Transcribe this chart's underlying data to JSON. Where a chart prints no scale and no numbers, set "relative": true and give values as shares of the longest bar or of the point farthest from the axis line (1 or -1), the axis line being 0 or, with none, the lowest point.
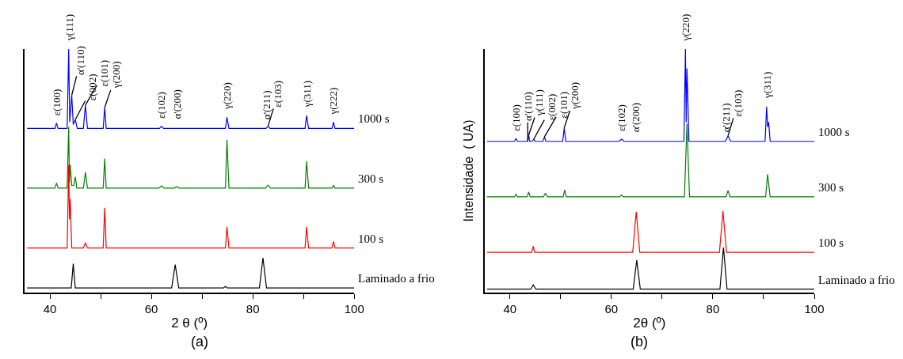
{
  "chart_data": [
    {
      "type": "line",
      "relative": true,
      "legend": false,
      "tick_labels": "x",
      "xlim": [
        35,
        100
      ],
      "xticks": [
        40,
        {
          "value": 50,
          "label": null
        },
        60,
        {
          "value": 70,
          "label": null
        },
        80,
        {
          "value": 90,
          "label": null
        },
        100
      ],
      "xlabel": "2 θ (º)",
      "series": [
        {
          "name": "1000 s",
          "color": "#0000ff",
          "x": [
            35.5,
            41.0,
            41.3,
            41.6,
            43.4,
            43.7,
            43.9,
            44.3,
            44.6,
            45.0,
            45.4,
            46.6,
            47.0,
            47.4,
            50.5,
            50.8,
            51.1,
            61.6,
            62.0,
            62.4,
            74.6,
            74.9,
            75.3,
            82.6,
            83.0,
            83.4,
            90.3,
            90.6,
            91.0,
            95.6,
            95.9,
            96.2,
            100
          ],
          "values": [
            0.674,
            0.674,
            0.696,
            0.674,
            0.674,
            1.0,
            0.7,
            0.81,
            0.69,
            0.71,
            0.674,
            0.674,
            0.77,
            0.674,
            0.674,
            0.76,
            0.674,
            0.674,
            0.683,
            0.674,
            0.674,
            0.72,
            0.674,
            0.674,
            0.683,
            0.674,
            0.674,
            0.727,
            0.674,
            0.674,
            0.7,
            0.674,
            0.674
          ]
        },
        {
          "name": "300 s",
          "color": "#008000",
          "x": [
            35.5,
            41.0,
            41.3,
            41.6,
            43.4,
            43.7,
            43.85,
            44.0,
            44.3,
            44.7,
            45.0,
            45.3,
            46.6,
            47.0,
            47.4,
            50.5,
            50.8,
            51.1,
            61.5,
            62.0,
            62.5,
            64.5,
            65.0,
            65.5,
            74.6,
            74.9,
            75.3,
            82.5,
            83.0,
            83.5,
            90.3,
            90.6,
            91.0,
            95.6,
            95.9,
            96.2,
            100
          ],
          "values": [
            0.429,
            0.429,
            0.45,
            0.429,
            0.429,
            0.68,
            0.45,
            0.525,
            0.44,
            0.44,
            0.475,
            0.429,
            0.429,
            0.494,
            0.429,
            0.429,
            0.55,
            0.429,
            0.429,
            0.438,
            0.429,
            0.429,
            0.435,
            0.429,
            0.429,
            0.627,
            0.429,
            0.429,
            0.441,
            0.429,
            0.429,
            0.54,
            0.429,
            0.429,
            0.441,
            0.429,
            0.429
          ]
        },
        {
          "name": "100 s",
          "color": "#ff0000",
          "x": [
            35.5,
            43.4,
            43.7,
            43.85,
            44.0,
            44.3,
            46.6,
            47.0,
            47.4,
            50.5,
            50.8,
            51.1,
            74.6,
            74.9,
            75.3,
            90.3,
            90.6,
            91.0,
            95.6,
            95.9,
            96.2,
            100
          ],
          "values": [
            0.183,
            0.183,
            0.525,
            0.3,
            0.385,
            0.183,
            0.183,
            0.205,
            0.183,
            0.183,
            0.348,
            0.183,
            0.183,
            0.27,
            0.183,
            0.183,
            0.27,
            0.183,
            0.183,
            0.21,
            0.183,
            0.183
          ]
        },
        {
          "name": "Laminado a frio",
          "color": "#000000",
          "x": [
            35.5,
            44.2,
            44.6,
            45.0,
            64.0,
            64.7,
            65.4,
            74.2,
            74.6,
            75.0,
            81.3,
            82.0,
            82.7,
            100
          ],
          "values": [
            0.019,
            0.019,
            0.118,
            0.019,
            0.019,
            0.115,
            0.019,
            0.019,
            0.025,
            0.019,
            0.019,
            0.143,
            0.019,
            0.019
          ]
        }
      ],
      "annotations": [
        {
          "text": "ε(100)",
          "x": 41.3,
          "y": 0.696
        },
        {
          "text": "γ(111)",
          "x": 43.7,
          "y": 1.0
        },
        {
          "text": "α'(110)",
          "x": 44.3,
          "y": 0.81
        },
        {
          "text": "ε(002)",
          "x": 45.0,
          "y": 0.71
        },
        {
          "text": "ε(101)",
          "x": 47.0,
          "y": 0.77
        },
        {
          "text": "γ(200)",
          "x": 50.8,
          "y": 0.76
        },
        {
          "text": "ε(102)",
          "x": 62.0,
          "y": 0.683
        },
        {
          "text": "α'(200)",
          "x": 65.0,
          "y": 0.674
        },
        {
          "text": "γ(220)",
          "x": 74.9,
          "y": 0.72
        },
        {
          "text": "α'(211)",
          "x": 82.6,
          "y": 0.674
        },
        {
          "text": "ε(103)",
          "x": 83.0,
          "y": 0.683
        },
        {
          "text": "γ(311)",
          "x": 90.6,
          "y": 0.727
        },
        {
          "text": "γ(222)",
          "x": 95.9,
          "y": 0.7
        },
        "(a)"
      ]
    },
    {
      "type": "line",
      "relative": true,
      "legend": false,
      "tick_labels": "x",
      "xlim": [
        35,
        100
      ],
      "xticks": [
        40,
        {
          "value": 50,
          "label": null
        },
        60,
        {
          "value": 70,
          "label": null
        },
        80,
        {
          "value": 90,
          "label": null
        },
        100
      ],
      "xlabel": "2θ (º)",
      "ylabel": "Intensidade  ( UA)",
      "series": [
        {
          "name": "1000 s",
          "color": "#0000ff",
          "x": [
            35.5,
            40.9,
            41.2,
            41.5,
            43.5,
            43.7,
            43.9,
            44.4,
            44.7,
            45.0,
            46.5,
            46.8,
            47.1,
            50.4,
            50.7,
            51.0,
            61.5,
            62.0,
            62.5,
            74.3,
            74.6,
            74.75,
            74.9,
            75.3,
            82.5,
            83.0,
            83.5,
            90.3,
            90.6,
            90.8,
            91.0,
            91.3,
            100
          ],
          "values": [
            0.621,
            0.621,
            0.633,
            0.621,
            0.621,
            0.647,
            0.621,
            0.621,
            0.63,
            0.621,
            0.621,
            0.639,
            0.621,
            0.621,
            0.676,
            0.621,
            0.621,
            0.63,
            0.621,
            0.621,
            1.0,
            0.7,
            0.92,
            0.621,
            0.621,
            0.644,
            0.621,
            0.621,
            0.763,
            0.68,
            0.7,
            0.621,
            0.621
          ]
        },
        {
          "name": "300 s",
          "color": "#008000",
          "x": [
            35.5,
            40.9,
            41.2,
            41.5,
            43.4,
            43.7,
            44.0,
            46.6,
            47.0,
            47.4,
            50.5,
            50.8,
            51.1,
            61.6,
            62.0,
            62.4,
            74.4,
            74.9,
            75.4,
            82.6,
            83.0,
            83.4,
            90.4,
            90.8,
            91.3,
            100
          ],
          "values": [
            0.393,
            0.393,
            0.405,
            0.393,
            0.393,
            0.413,
            0.393,
            0.393,
            0.408,
            0.393,
            0.393,
            0.422,
            0.393,
            0.393,
            0.401,
            0.393,
            0.393,
            0.694,
            0.393,
            0.393,
            0.419,
            0.393,
            0.393,
            0.486,
            0.393,
            0.393
          ]
        },
        {
          "name": "100 s",
          "color": "#ff0000",
          "x": [
            35.5,
            44.3,
            44.6,
            44.9,
            64.2,
            64.9,
            65.6,
            81.3,
            82.0,
            82.7,
            100
          ],
          "values": [
            0.165,
            0.165,
            0.19,
            0.165,
            0.165,
            0.332,
            0.165,
            0.165,
            0.335,
            0.165,
            0.165
          ]
        },
        {
          "name": "Laminado a frio",
          "color": "#000000",
          "x": [
            35.5,
            44.1,
            44.6,
            45.1,
            64.3,
            65.0,
            65.7,
            81.4,
            82.1,
            82.8,
            100
          ],
          "values": [
            0.014,
            0.014,
            0.032,
            0.014,
            0.014,
            0.133,
            0.014,
            0.014,
            0.185,
            0.014,
            0.014
          ]
        }
      ],
      "annotations": [
        {
          "text": "ε(100)",
          "x": 41.2,
          "y": 0.633
        },
        {
          "text": "α'(110)",
          "x": 43.5,
          "y": 0.621
        },
        {
          "text": "γ(111)",
          "x": 43.7,
          "y": 0.647
        },
        {
          "text": "ε(002)",
          "x": 44.7,
          "y": 0.63
        },
        {
          "text": "ε(101)",
          "x": 46.8,
          "y": 0.639
        },
        {
          "text": "γ(200)",
          "x": 50.7,
          "y": 0.676
        },
        {
          "text": "ε(102)",
          "x": 62.0,
          "y": 0.63
        },
        {
          "text": "α'(200)",
          "x": 64.8,
          "y": 0.621
        },
        {
          "text": "γ(220)",
          "x": 74.6,
          "y": 1.0
        },
        {
          "text": "α'(211)",
          "x": 82.6,
          "y": 0.621
        },
        {
          "text": "ε(103)",
          "x": 83.0,
          "y": 0.644
        },
        {
          "text": "γ(311)",
          "x": 90.6,
          "y": 0.763
        },
        "(b)"
      ]
    }
  ]
}
